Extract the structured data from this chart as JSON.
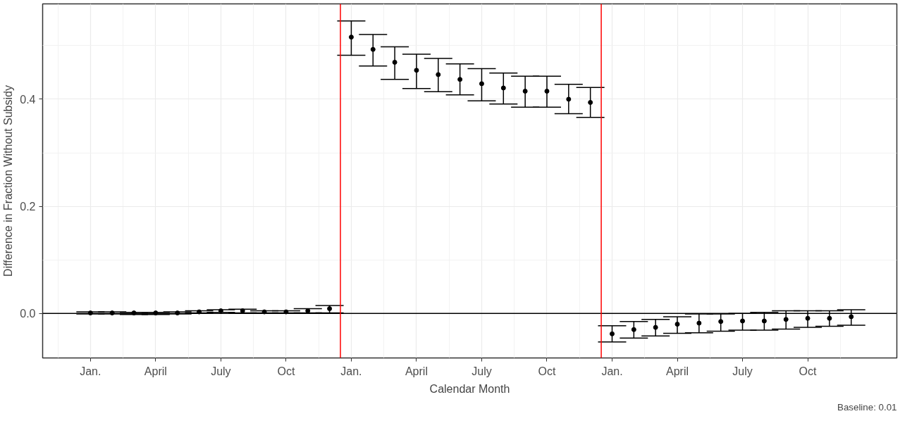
{
  "chart_data": {
    "type": "scatter",
    "xlabel": "Calendar Month",
    "ylabel": "Difference in Fraction Without Subsidy",
    "annotations": [
      "Baseline: 0.01"
    ],
    "categories": [
      "Jan.",
      null,
      null,
      "April",
      null,
      null,
      "July",
      null,
      null,
      "Oct",
      null,
      null,
      "Jan.",
      null,
      null,
      "April",
      null,
      null,
      "July",
      null,
      null,
      "Oct",
      null,
      null,
      "Jan.",
      null,
      null,
      "April",
      null,
      null,
      "July",
      null,
      null,
      "Oct",
      null,
      null
    ],
    "series": [
      {
        "color": "#000000",
        "values": [
          0.001,
          0.001,
          0.001,
          0.001,
          0.001,
          0.003,
          0.005,
          0.005,
          0.003,
          0.003,
          0.005,
          0.009,
          0.516,
          0.493,
          0.469,
          0.454,
          0.446,
          0.437,
          0.429,
          0.421,
          0.415,
          0.415,
          0.4,
          0.394,
          -0.038,
          -0.03,
          -0.026,
          -0.02,
          -0.018,
          -0.015,
          -0.014,
          -0.014,
          -0.011,
          -0.009,
          -0.009,
          -0.006
        ],
        "errors": [
          [
            -0.001,
            0.003
          ],
          [
            -0.001,
            0.003
          ],
          [
            -0.002,
            0.002
          ],
          [
            -0.002,
            0.002
          ],
          [
            -0.001,
            0.003
          ],
          [
            0.001,
            0.005
          ],
          [
            0.002,
            0.007
          ],
          [
            0.001,
            0.008
          ],
          [
            0.001,
            0.005
          ],
          [
            0.001,
            0.005
          ],
          [
            0.001,
            0.009
          ],
          [
            0.001,
            0.015
          ],
          [
            0.482,
            0.546
          ],
          [
            0.462,
            0.521
          ],
          [
            0.437,
            0.498
          ],
          [
            0.42,
            0.484
          ],
          [
            0.414,
            0.476
          ],
          [
            0.408,
            0.466
          ],
          [
            0.397,
            0.457
          ],
          [
            0.391,
            0.449
          ],
          [
            0.385,
            0.443
          ],
          [
            0.385,
            0.443
          ],
          [
            0.373,
            0.428
          ],
          [
            0.366,
            0.422
          ],
          [
            -0.053,
            -0.023
          ],
          [
            -0.046,
            -0.015
          ],
          [
            -0.042,
            -0.011
          ],
          [
            -0.037,
            -0.006
          ],
          [
            -0.036,
            -0.001
          ],
          [
            -0.033,
            -0.001
          ],
          [
            -0.031,
            0.0
          ],
          [
            -0.031,
            0.002
          ],
          [
            -0.029,
            0.005
          ],
          [
            -0.026,
            0.005
          ],
          [
            -0.024,
            0.005
          ],
          [
            -0.022,
            0.007
          ]
        ]
      }
    ],
    "ylim": [
      -0.083,
      0.578
    ],
    "yticks": [
      {
        "value": 0,
        "label": "0.0"
      },
      {
        "value": 0.2,
        "label": "0.2"
      },
      {
        "value": 0.4,
        "label": "0.4"
      }
    ],
    "ref_lines": [
      {
        "axis": "y",
        "value": 0,
        "color": "#000000"
      }
    ],
    "grid": true,
    "marker": "circle"
  }
}
